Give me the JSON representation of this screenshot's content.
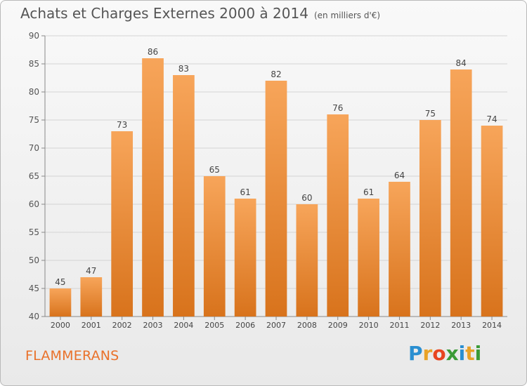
{
  "title": "Achats et Charges Externes 2000 à 2014",
  "subtitle": "(en milliers d'€)",
  "commune": "FLAMMERANS",
  "logo": {
    "letters": [
      "P",
      "r",
      "o",
      "x",
      "i",
      "t",
      "i"
    ],
    "colors": [
      "#2a8fd1",
      "#e8a227",
      "#e8441f",
      "#3b9b36",
      "#2a8fd1",
      "#e8a227",
      "#3b9b36"
    ]
  },
  "colors": {
    "bar_top": "#f7a55a",
    "bar_bottom": "#d8731c",
    "commune_text": "#e9712a",
    "grid": "#d4d4d4"
  },
  "chart_data": {
    "type": "bar",
    "categories": [
      "2000",
      "2001",
      "2002",
      "2003",
      "2004",
      "2005",
      "2006",
      "2007",
      "2008",
      "2009",
      "2010",
      "2011",
      "2012",
      "2013",
      "2014"
    ],
    "values": [
      45,
      47,
      73,
      86,
      83,
      65,
      61,
      82,
      60,
      76,
      61,
      64,
      75,
      84,
      74
    ],
    "ylim": [
      40,
      90
    ],
    "yticks": [
      40,
      45,
      50,
      55,
      60,
      65,
      70,
      75,
      80,
      85,
      90
    ],
    "grid": true,
    "data_labels": true
  }
}
